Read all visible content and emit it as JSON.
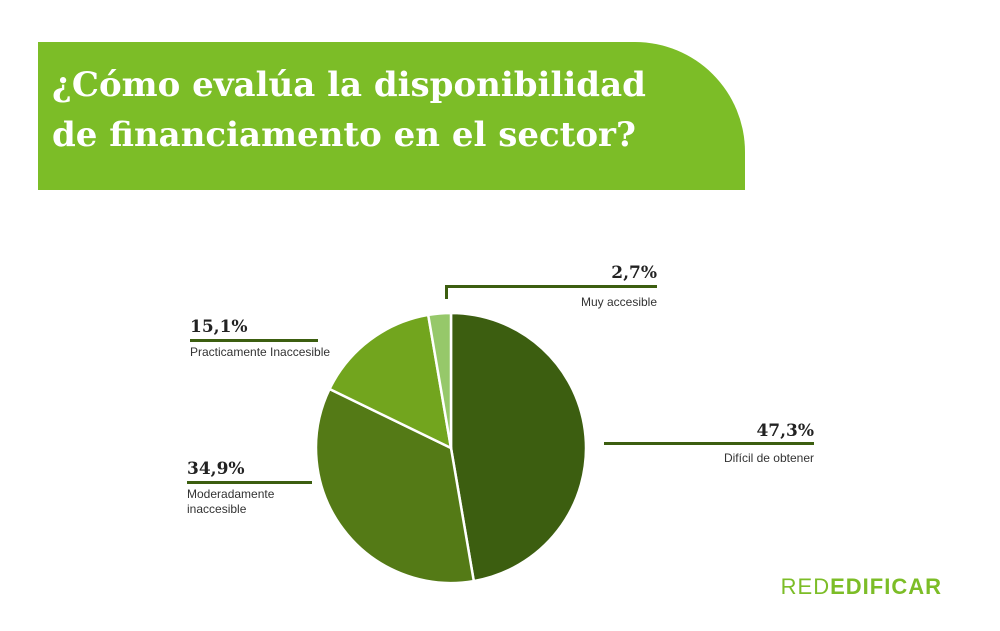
{
  "header": {
    "title_line1": "¿Cómo evalúa la disponibilidad",
    "title_line2": "de financiamento en el sector?",
    "banner_color": "#7cbd27"
  },
  "chart_data": {
    "type": "pie",
    "title": "¿Cómo evalúa la disponibilidad de financiamento en el sector?",
    "slices": [
      {
        "label": "Difícil de obtener",
        "value": 47.3,
        "display": "47,3%",
        "color": "#3c5e10"
      },
      {
        "label": "Moderadamente inaccesible",
        "display_line1": "Moderadamente",
        "display_line2": "inaccesible",
        "value": 34.9,
        "display": "34,9%",
        "color": "#547a16"
      },
      {
        "label": "Practicamente Inaccesible",
        "value": 15.1,
        "display": "15,1%",
        "color": "#72a51e"
      },
      {
        "label": "Muy accesible",
        "value": 2.7,
        "display": "2,7%",
        "color": "#96c86a"
      }
    ],
    "legend": "none"
  },
  "brand": {
    "part1": "RED",
    "part2": "EDIFICAR"
  }
}
